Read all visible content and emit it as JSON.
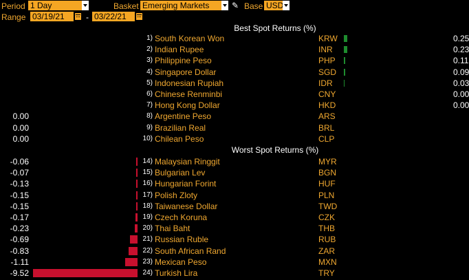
{
  "toolbar": {
    "period_label": "Period",
    "period_value": "1 Day",
    "basket_label": "Basket",
    "basket_value": "Emerging Markets",
    "base_label": "Base",
    "base_value": "USD",
    "range_label": "Range",
    "range_start": "03/19/21",
    "range_sep": "-",
    "range_end": "03/22/21",
    "edit_icon": "pencil-icon",
    "calendar_icon": "calendar-icon",
    "dropdown_icon": "chevron-down-icon"
  },
  "best_header": "Best Spot Returns (%)",
  "worst_header": "Worst Spot Returns (%)",
  "colors": {
    "bar_positive": "#1e8c2e",
    "bar_negative": "#c8102e",
    "accent": "#f5a623"
  },
  "chart_data": {
    "type": "bar",
    "title": "Best Spot Returns (%) / Worst Spot Returns (%)",
    "best": [
      {
        "rank": "1)",
        "name": "South Korean Won",
        "code": "KRW",
        "value": 0.25,
        "value_text": "0.25"
      },
      {
        "rank": "2)",
        "name": "Indian Rupee",
        "code": "INR",
        "value": 0.23,
        "value_text": "0.23"
      },
      {
        "rank": "3)",
        "name": "Philippine Peso",
        "code": "PHP",
        "value": 0.11,
        "value_text": "0.11"
      },
      {
        "rank": "4)",
        "name": "Singapore Dollar",
        "code": "SGD",
        "value": 0.09,
        "value_text": "0.09"
      },
      {
        "rank": "5)",
        "name": "Indonesian Rupiah",
        "code": "IDR",
        "value": 0.03,
        "value_text": "0.03"
      },
      {
        "rank": "6)",
        "name": "Chinese Renminbi",
        "code": "CNY",
        "value": 0.0,
        "value_text": "0.00"
      },
      {
        "rank": "7)",
        "name": "Hong Kong Dollar",
        "code": "HKD",
        "value": 0.0,
        "value_text": "0.00"
      },
      {
        "rank": "8)",
        "name": "Argentine Peso",
        "code": "ARS",
        "value": 0.0,
        "value_text": "0.00"
      },
      {
        "rank": "9)",
        "name": "Brazilian Real",
        "code": "BRL",
        "value": 0.0,
        "value_text": "0.00"
      },
      {
        "rank": "10)",
        "name": "Chilean Peso",
        "code": "CLP",
        "value": 0.0,
        "value_text": "0.00"
      }
    ],
    "worst": [
      {
        "rank": "14)",
        "name": "Malaysian Ringgit",
        "code": "MYR",
        "value": -0.06,
        "value_text": "-0.06"
      },
      {
        "rank": "15)",
        "name": "Bulgarian Lev",
        "code": "BGN",
        "value": -0.07,
        "value_text": "-0.07"
      },
      {
        "rank": "16)",
        "name": "Hungarian Forint",
        "code": "HUF",
        "value": -0.13,
        "value_text": "-0.13"
      },
      {
        "rank": "17)",
        "name": "Polish Zloty",
        "code": "PLN",
        "value": -0.15,
        "value_text": "-0.15"
      },
      {
        "rank": "18)",
        "name": "Taiwanese Dollar",
        "code": "TWD",
        "value": -0.15,
        "value_text": "-0.15"
      },
      {
        "rank": "19)",
        "name": "Czech Koruna",
        "code": "CZK",
        "value": -0.17,
        "value_text": "-0.17"
      },
      {
        "rank": "20)",
        "name": "Thai Baht",
        "code": "THB",
        "value": -0.23,
        "value_text": "-0.23"
      },
      {
        "rank": "21)",
        "name": "Russian Ruble",
        "code": "RUB",
        "value": -0.69,
        "value_text": "-0.69"
      },
      {
        "rank": "22)",
        "name": "South African Rand",
        "code": "ZAR",
        "value": -0.83,
        "value_text": "-0.83"
      },
      {
        "rank": "23)",
        "name": "Mexican Peso",
        "code": "MXN",
        "value": -1.11,
        "value_text": "-1.11"
      },
      {
        "rank": "24)",
        "name": "Turkish Lira",
        "code": "TRY",
        "value": -9.52,
        "value_text": "-9.52"
      }
    ]
  }
}
